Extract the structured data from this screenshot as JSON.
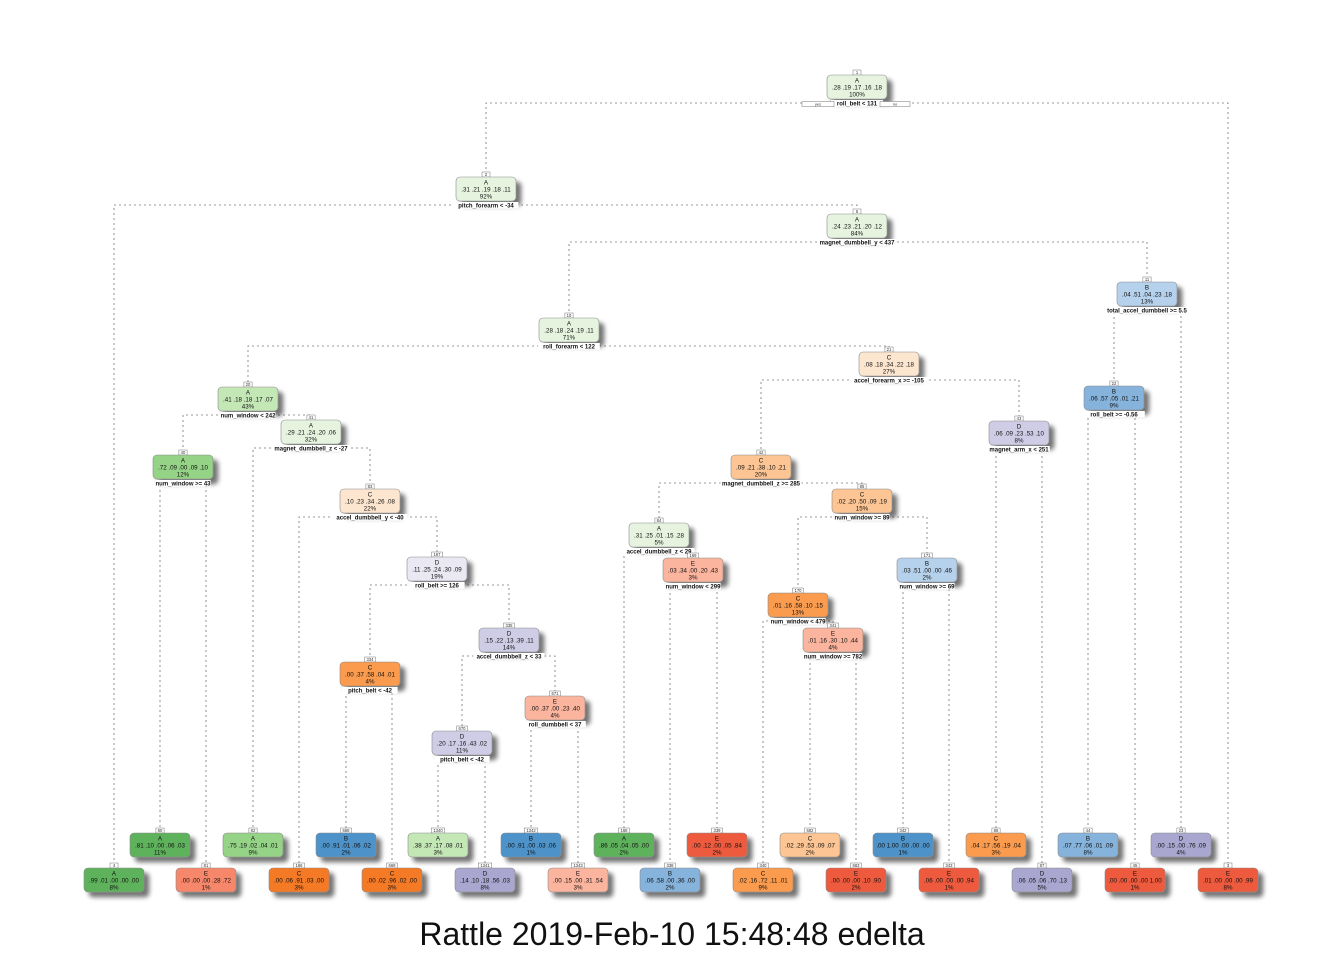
{
  "caption": "Rattle 2019-Feb-10 15:48:48 edelta",
  "branch_labels": {
    "yes": "yes",
    "no": "no"
  },
  "class_colors": {
    "A": [
      "#e6f4df",
      "#c4e7b6",
      "#95d386",
      "#5fb25c"
    ],
    "B": [
      "#dde9f6",
      "#b6d1ec",
      "#86b3dc",
      "#4d92c8"
    ],
    "C": [
      "#fde6cf",
      "#fcc593",
      "#fb9b4e",
      "#f57a28"
    ],
    "D": [
      "#e9e8f3",
      "#cfcde6",
      "#a9a6d0",
      "#8c87bf"
    ],
    "E": [
      "#fde0d5",
      "#fbb49d",
      "#f7876a",
      "#ee5a3c"
    ]
  },
  "nodes": [
    {
      "id": "1",
      "cls": "A",
      "probs": ".28 .19 .17 .16 .18",
      "pct": "100%",
      "split": "roll_belt < 131"
    },
    {
      "id": "2",
      "cls": "A",
      "probs": ".31 .21 .19 .18 .11",
      "pct": "92%",
      "split": "pitch_forearm < -34"
    },
    {
      "id": "5",
      "cls": "A",
      "probs": ".24 .23 .21 .20 .12",
      "pct": "84%",
      "split": "magnet_dumbbell_y < 437"
    },
    {
      "id": "11",
      "cls": "B",
      "probs": ".04 .51 .04 .23 .18",
      "pct": "13%",
      "split": "total_accel_dumbbell >= 5.5"
    },
    {
      "id": "10",
      "cls": "A",
      "probs": ".28 .18 .24 .19 .11",
      "pct": "71%",
      "split": "roll_forearm < 122"
    },
    {
      "id": "21",
      "cls": "C",
      "probs": ".08 .18 .34 .22 .18",
      "pct": "27%",
      "split": "accel_forearm_x >= -105"
    },
    {
      "id": "20",
      "cls": "A",
      "probs": ".41 .18 .18 .17 .07",
      "pct": "43%",
      "split": "num_window < 242"
    },
    {
      "id": "41",
      "cls": "A",
      "probs": ".29 .21 .24 .20 .06",
      "pct": "32%",
      "split": "magnet_dumbbell_z < -27"
    },
    {
      "id": "40",
      "cls": "A",
      "probs": ".72 .09 .00 .09 .10",
      "pct": "12%",
      "split": "num_window >= 43"
    },
    {
      "id": "83",
      "cls": "C",
      "probs": ".10 .23 .34 .26 .08",
      "pct": "22%",
      "split": "accel_dumbbell_y < -40"
    },
    {
      "id": "167",
      "cls": "D",
      "probs": ".11 .25 .24 .30 .09",
      "pct": "19%",
      "split": "roll_belt >= 126"
    },
    {
      "id": "334",
      "cls": "C",
      "probs": ".00 .37 .58 .04 .01",
      "pct": "4%",
      "split": "pitch_belt < -42"
    },
    {
      "id": "335",
      "cls": "D",
      "probs": ".15 .22 .13 .39 .11",
      "pct": "14%",
      "split": "accel_dumbbell_z < 33"
    },
    {
      "id": "670",
      "cls": "D",
      "probs": ".20 .17 .16 .43 .02",
      "pct": "11%",
      "split": "pitch_belt < -42"
    },
    {
      "id": "671",
      "cls": "E",
      "probs": ".00 .37 .00 .23 .40",
      "pct": "4%",
      "split": "roll_dumbbell < 37"
    },
    {
      "id": "43",
      "cls": "D",
      "probs": ".06 .09 .23 .53 .10",
      "pct": "8%",
      "split": "magnet_arm_x < 251"
    },
    {
      "id": "42",
      "cls": "C",
      "probs": ".09 .21 .38 .10 .21",
      "pct": "20%",
      "split": "magnet_dumbbell_z >= 285"
    },
    {
      "id": "84",
      "cls": "A",
      "probs": ".31 .25 .01 .15 .28",
      "pct": "5%",
      "split": "accel_dumbbell_z < 29"
    },
    {
      "id": "169",
      "cls": "E",
      "probs": ".03 .34 .00 .20 .43",
      "pct": "3%",
      "split": "num_window < 299"
    },
    {
      "id": "85",
      "cls": "C",
      "probs": ".02 .20 .50 .09 .19",
      "pct": "15%",
      "split": "num_window >= 89"
    },
    {
      "id": "170",
      "cls": "C",
      "probs": ".01 .16 .58 .10 .15",
      "pct": "13%",
      "split": "num_window < 479"
    },
    {
      "id": "341",
      "cls": "E",
      "probs": ".01 .16 .30 .10 .44",
      "pct": "4%",
      "split": "num_window >= 782"
    },
    {
      "id": "171",
      "cls": "B",
      "probs": ".03 .51 .00 .00 .46",
      "pct": "2%",
      "split": "num_window >= 69"
    },
    {
      "id": "22",
      "cls": "B",
      "probs": ".06 .57 .05 .01 .21",
      "pct": "9%",
      "split": "roll_belt >= -0.56"
    },
    {
      "id": "4",
      "cls": "A",
      "probs": ".99 .01 .00 .00 .00",
      "pct": "8%",
      "split": ""
    },
    {
      "id": "80",
      "cls": "A",
      "probs": ".81 .10 .00 .06 .03",
      "pct": "11%",
      "split": ""
    },
    {
      "id": "81",
      "cls": "E",
      "probs": ".00 .00 .00 .28 .72",
      "pct": "1%",
      "split": ""
    },
    {
      "id": "82",
      "cls": "A",
      "probs": ".75 .19 .02 .04 .01",
      "pct": "9%",
      "split": ""
    },
    {
      "id": "166",
      "cls": "C",
      "probs": ".00 .06 .91 .03 .00",
      "pct": "3%",
      "split": ""
    },
    {
      "id": "668",
      "cls": "B",
      "probs": ".00 .91 .01 .06 .02",
      "pct": "2%",
      "split": ""
    },
    {
      "id": "669",
      "cls": "C",
      "probs": ".00 .02 .96 .02 .00",
      "pct": "3%",
      "split": ""
    },
    {
      "id": "1340",
      "cls": "A",
      "probs": ".38 .37 .17 .08 .01",
      "pct": "3%",
      "split": ""
    },
    {
      "id": "1341",
      "cls": "D",
      "probs": ".14 .10 .18 .56 .03",
      "pct": "8%",
      "split": ""
    },
    {
      "id": "1342",
      "cls": "B",
      "probs": ".00 .91 .00 .03 .06",
      "pct": "1%",
      "split": ""
    },
    {
      "id": "1343",
      "cls": "E",
      "probs": ".00 .15 .00 .31 .54",
      "pct": "3%",
      "split": ""
    },
    {
      "id": "168",
      "cls": "A",
      "probs": ".86 .05 .04 .05 .00",
      "pct": "2%",
      "split": ""
    },
    {
      "id": "338",
      "cls": "B",
      "probs": ".06 .58 .00 .36 .00",
      "pct": "2%",
      "split": ""
    },
    {
      "id": "339",
      "cls": "E",
      "probs": ".00 .12 .00 .05 .84",
      "pct": "2%",
      "split": ""
    },
    {
      "id": "340",
      "cls": "C",
      "probs": ".02 .16 .72 .11 .01",
      "pct": "9%",
      "split": ""
    },
    {
      "id": "682",
      "cls": "C",
      "probs": ".02 .29 .53 .09 .07",
      "pct": "2%",
      "split": ""
    },
    {
      "id": "683",
      "cls": "E",
      "probs": ".00 .00 .00 .10 .90",
      "pct": "2%",
      "split": ""
    },
    {
      "id": "342",
      "cls": "B",
      "probs": ".00 1.00 .00 .00 .00",
      "pct": "1%",
      "split": ""
    },
    {
      "id": "343",
      "cls": "E",
      "probs": ".06 .00 .00 .00 .94",
      "pct": "1%",
      "split": ""
    },
    {
      "id": "86",
      "cls": "C",
      "probs": ".04 .17 .56 .19 .04",
      "pct": "3%",
      "split": ""
    },
    {
      "id": "87",
      "cls": "D",
      "probs": ".06 .05 .06 .70 .13",
      "pct": "5%",
      "split": ""
    },
    {
      "id": "44",
      "cls": "B",
      "probs": ".07 .77 .06 .01 .09",
      "pct": "8%",
      "split": ""
    },
    {
      "id": "45",
      "cls": "E",
      "probs": ".00 .00 .00 .00 1.00",
      "pct": "1%",
      "split": ""
    },
    {
      "id": "23",
      "cls": "D",
      "probs": ".00 .15 .00 .76 .09",
      "pct": "4%",
      "split": ""
    },
    {
      "id": "3",
      "cls": "E",
      "probs": ".01 .00 .00 .00 .99",
      "pct": "8%",
      "split": ""
    }
  ],
  "edges": [
    [
      "1",
      "2"
    ],
    [
      "1",
      "3"
    ],
    [
      "2",
      "4"
    ],
    [
      "2",
      "5"
    ],
    [
      "5",
      "10"
    ],
    [
      "5",
      "11"
    ],
    [
      "10",
      "20"
    ],
    [
      "10",
      "21"
    ],
    [
      "20",
      "40"
    ],
    [
      "20",
      "41"
    ],
    [
      "40",
      "80"
    ],
    [
      "40",
      "81"
    ],
    [
      "41",
      "82"
    ],
    [
      "41",
      "83"
    ],
    [
      "83",
      "166"
    ],
    [
      "83",
      "167"
    ],
    [
      "167",
      "334"
    ],
    [
      "167",
      "335"
    ],
    [
      "334",
      "668"
    ],
    [
      "334",
      "669"
    ],
    [
      "335",
      "670"
    ],
    [
      "335",
      "671"
    ],
    [
      "670",
      "1340"
    ],
    [
      "670",
      "1341"
    ],
    [
      "671",
      "1342"
    ],
    [
      "671",
      "1343"
    ],
    [
      "21",
      "42"
    ],
    [
      "21",
      "43"
    ],
    [
      "42",
      "84"
    ],
    [
      "42",
      "85"
    ],
    [
      "84",
      "168"
    ],
    [
      "84",
      "169"
    ],
    [
      "169",
      "338"
    ],
    [
      "169",
      "339"
    ],
    [
      "85",
      "170"
    ],
    [
      "85",
      "171"
    ],
    [
      "170",
      "340"
    ],
    [
      "170",
      "341"
    ],
    [
      "341",
      "682"
    ],
    [
      "341",
      "683"
    ],
    [
      "171",
      "342"
    ],
    [
      "171",
      "343"
    ],
    [
      "43",
      "86"
    ],
    [
      "43",
      "87"
    ],
    [
      "11",
      "22"
    ],
    [
      "11",
      "23"
    ],
    [
      "22",
      "44"
    ],
    [
      "22",
      "45"
    ]
  ]
}
